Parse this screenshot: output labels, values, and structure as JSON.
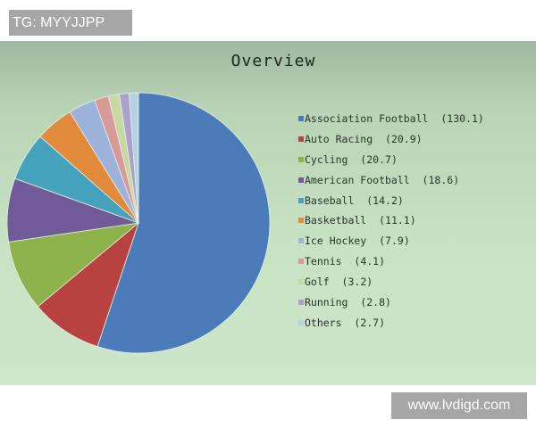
{
  "watermarks": {
    "top_left": "TG: MYYJJPP",
    "bottom_right": "www.lvdigd.com"
  },
  "chart_data": {
    "type": "pie",
    "title": "Overview",
    "legend_position": "right",
    "start": "top, clockwise",
    "slices": [
      {
        "label": "Association Football",
        "value": 130.1,
        "color": "#4b7bb8"
      },
      {
        "label": "Auto Racing",
        "value": 20.9,
        "color": "#b8423f"
      },
      {
        "label": "Cycling",
        "value": 20.7,
        "color": "#8db24c"
      },
      {
        "label": "American Football",
        "value": 18.6,
        "color": "#705b98"
      },
      {
        "label": "Baseball",
        "value": 14.2,
        "color": "#44a2bd"
      },
      {
        "label": "Basketball",
        "value": 11.1,
        "color": "#e28a3c"
      },
      {
        "label": "Ice Hockey",
        "value": 7.9,
        "color": "#9cb2da"
      },
      {
        "label": "Tennis",
        "value": 4.1,
        "color": "#d89a98"
      },
      {
        "label": "Golf",
        "value": 3.2,
        "color": "#c7d8a2"
      },
      {
        "label": "Running",
        "value": 2.8,
        "color": "#aaa2cc"
      },
      {
        "label": "Others",
        "value": 2.7,
        "color": "#b3d3e2"
      }
    ]
  }
}
